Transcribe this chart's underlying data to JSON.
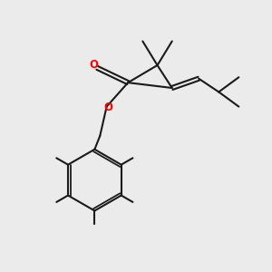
{
  "bg_color": "#ebebeb",
  "bond_color": "#1a1a1a",
  "oxygen_color": "#ff0000",
  "line_width": 1.5,
  "fig_size": [
    3.0,
    3.0
  ],
  "dpi": 100,
  "xlim": [
    0,
    10
  ],
  "ylim": [
    0,
    10
  ]
}
